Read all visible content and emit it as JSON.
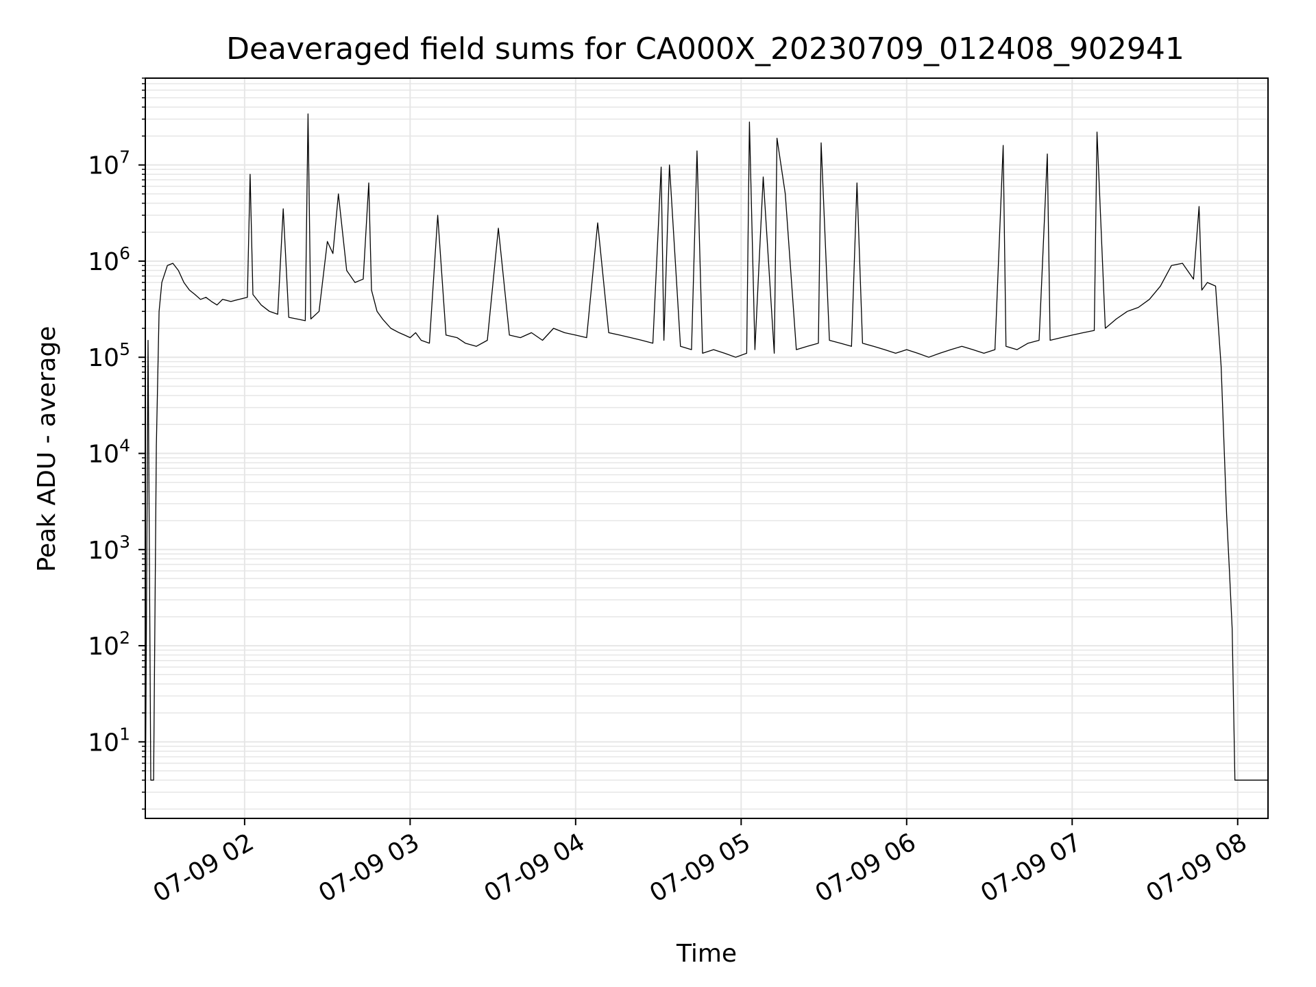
{
  "chart_data": {
    "type": "line",
    "title": "Deaveraged field sums for CA000X_20230709_012408_902941",
    "xlabel": "Time",
    "ylabel": "Peak ADU - average",
    "y_scale": "log",
    "grid": true,
    "line_color": "#000000",
    "grid_color": "#e6e6e6",
    "xlim": [
      "2023-07-09 01:24",
      "2023-07-09 08:11"
    ],
    "ylim": [
      1.6,
      80000000
    ],
    "x_ticks": [
      {
        "value": "2023-07-09 02:00",
        "label": "07-09 02"
      },
      {
        "value": "2023-07-09 03:00",
        "label": "07-09 03"
      },
      {
        "value": "2023-07-09 04:00",
        "label": "07-09 04"
      },
      {
        "value": "2023-07-09 05:00",
        "label": "07-09 05"
      },
      {
        "value": "2023-07-09 06:00",
        "label": "07-09 06"
      },
      {
        "value": "2023-07-09 07:00",
        "label": "07-09 07"
      },
      {
        "value": "2023-07-09 08:00",
        "label": "07-09 08"
      }
    ],
    "y_ticks": [
      {
        "value": 10,
        "base": "10",
        "exp": "1"
      },
      {
        "value": 100,
        "base": "10",
        "exp": "2"
      },
      {
        "value": 1000,
        "base": "10",
        "exp": "3"
      },
      {
        "value": 10000,
        "base": "10",
        "exp": "4"
      },
      {
        "value": 100000,
        "base": "10",
        "exp": "5"
      },
      {
        "value": 1000000,
        "base": "10",
        "exp": "6"
      },
      {
        "value": 10000000,
        "base": "10",
        "exp": "7"
      }
    ],
    "series": [
      {
        "x": [
          "2023-07-09 01:24",
          "2023-07-09 01:25",
          "2023-07-09 01:26",
          "2023-07-09 01:27",
          "2023-07-09 01:28",
          "2023-07-09 01:29",
          "2023-07-09 01:30",
          "2023-07-09 01:32",
          "2023-07-09 01:34",
          "2023-07-09 01:36",
          "2023-07-09 01:38",
          "2023-07-09 01:40",
          "2023-07-09 01:42",
          "2023-07-09 01:44",
          "2023-07-09 01:46",
          "2023-07-09 01:48",
          "2023-07-09 01:50",
          "2023-07-09 01:52",
          "2023-07-09 01:55",
          "2023-07-09 01:58",
          "2023-07-09 02:01",
          "2023-07-09 02:02",
          "2023-07-09 02:03",
          "2023-07-09 02:06",
          "2023-07-09 02:09",
          "2023-07-09 02:12",
          "2023-07-09 02:14",
          "2023-07-09 02:16",
          "2023-07-09 02:19",
          "2023-07-09 02:22",
          "2023-07-09 02:23",
          "2023-07-09 02:24",
          "2023-07-09 02:27",
          "2023-07-09 02:30",
          "2023-07-09 02:32",
          "2023-07-09 02:34",
          "2023-07-09 02:37",
          "2023-07-09 02:40",
          "2023-07-09 02:43",
          "2023-07-09 02:45",
          "2023-07-09 02:46",
          "2023-07-09 02:48",
          "2023-07-09 02:50",
          "2023-07-09 02:53",
          "2023-07-09 02:56",
          "2023-07-09 02:58",
          "2023-07-09 03:00",
          "2023-07-09 03:02",
          "2023-07-09 03:04",
          "2023-07-09 03:07",
          "2023-07-09 03:10",
          "2023-07-09 03:13",
          "2023-07-09 03:17",
          "2023-07-09 03:20",
          "2023-07-09 03:24",
          "2023-07-09 03:28",
          "2023-07-09 03:32",
          "2023-07-09 03:36",
          "2023-07-09 03:40",
          "2023-07-09 03:44",
          "2023-07-09 03:48",
          "2023-07-09 03:52",
          "2023-07-09 03:56",
          "2023-07-09 04:00",
          "2023-07-09 04:04",
          "2023-07-09 04:08",
          "2023-07-09 04:12",
          "2023-07-09 04:16",
          "2023-07-09 04:20",
          "2023-07-09 04:24",
          "2023-07-09 04:28",
          "2023-07-09 04:31",
          "2023-07-09 04:32",
          "2023-07-09 04:34",
          "2023-07-09 04:38",
          "2023-07-09 04:42",
          "2023-07-09 04:44",
          "2023-07-09 04:46",
          "2023-07-09 04:50",
          "2023-07-09 04:54",
          "2023-07-09 04:58",
          "2023-07-09 05:02",
          "2023-07-09 05:03",
          "2023-07-09 05:05",
          "2023-07-09 05:08",
          "2023-07-09 05:12",
          "2023-07-09 05:13",
          "2023-07-09 05:16",
          "2023-07-09 05:20",
          "2023-07-09 05:24",
          "2023-07-09 05:28",
          "2023-07-09 05:29",
          "2023-07-09 05:32",
          "2023-07-09 05:36",
          "2023-07-09 05:40",
          "2023-07-09 05:42",
          "2023-07-09 05:44",
          "2023-07-09 05:48",
          "2023-07-09 05:52",
          "2023-07-09 05:56",
          "2023-07-09 06:00",
          "2023-07-09 06:04",
          "2023-07-09 06:08",
          "2023-07-09 06:12",
          "2023-07-09 06:16",
          "2023-07-09 06:20",
          "2023-07-09 06:24",
          "2023-07-09 06:28",
          "2023-07-09 06:32",
          "2023-07-09 06:35",
          "2023-07-09 06:36",
          "2023-07-09 06:40",
          "2023-07-09 06:44",
          "2023-07-09 06:48",
          "2023-07-09 06:51",
          "2023-07-09 06:52",
          "2023-07-09 06:56",
          "2023-07-09 07:00",
          "2023-07-09 07:04",
          "2023-07-09 07:08",
          "2023-07-09 07:09",
          "2023-07-09 07:12",
          "2023-07-09 07:16",
          "2023-07-09 07:20",
          "2023-07-09 07:24",
          "2023-07-09 07:28",
          "2023-07-09 07:32",
          "2023-07-09 07:36",
          "2023-07-09 07:40",
          "2023-07-09 07:44",
          "2023-07-09 07:46",
          "2023-07-09 07:47",
          "2023-07-09 07:49",
          "2023-07-09 07:52",
          "2023-07-09 07:54",
          "2023-07-09 07:56",
          "2023-07-09 07:57",
          "2023-07-09 07:58",
          "2023-07-09 07:59",
          "2023-07-09 08:00",
          "2023-07-09 08:04",
          "2023-07-09 08:08",
          "2023-07-09 08:11"
        ],
        "values": [
          1.6,
          150000,
          4,
          4,
          12000,
          300000,
          600000,
          900000,
          950000,
          800000,
          600000,
          500000,
          450000,
          400000,
          420000,
          380000,
          350000,
          400000,
          380000,
          400000,
          420000,
          8000000,
          450000,
          350000,
          300000,
          280000,
          3500000,
          260000,
          250000,
          240000,
          34000000,
          250000,
          300000,
          1600000,
          1200000,
          5000000,
          800000,
          600000,
          650000,
          6500000,
          500000,
          300000,
          250000,
          200000,
          180000,
          170000,
          160000,
          180000,
          150000,
          140000,
          3000000,
          170000,
          160000,
          140000,
          130000,
          150000,
          2200000,
          170000,
          160000,
          180000,
          150000,
          200000,
          180000,
          170000,
          160000,
          2500000,
          180000,
          170000,
          160000,
          150000,
          140000,
          9500000,
          150000,
          10000000,
          130000,
          120000,
          14000000,
          110000,
          120000,
          110000,
          100000,
          110000,
          28000000,
          120000,
          7500000,
          110000,
          19000000,
          5000000,
          120000,
          130000,
          140000,
          17000000,
          150000,
          140000,
          130000,
          6500000,
          140000,
          130000,
          120000,
          110000,
          120000,
          110000,
          100000,
          110000,
          120000,
          130000,
          120000,
          110000,
          120000,
          16000000,
          130000,
          120000,
          140000,
          150000,
          13000000,
          150000,
          160000,
          170000,
          180000,
          190000,
          22000000,
          200000,
          250000,
          300000,
          330000,
          400000,
          550000,
          900000,
          950000,
          650000,
          3700000,
          500000,
          600000,
          550000,
          80000,
          2300,
          600,
          150,
          4,
          4,
          4,
          4,
          4
        ]
      }
    ]
  }
}
